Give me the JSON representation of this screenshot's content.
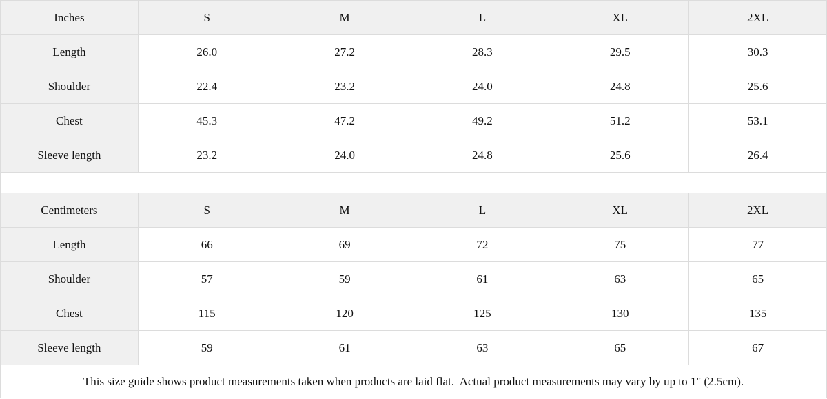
{
  "chart_data": [
    {
      "type": "table",
      "title": "Inches",
      "columns": [
        "Inches",
        "S",
        "M",
        "L",
        "XL",
        "2XL"
      ],
      "rows": [
        [
          "Length",
          "26.0",
          "27.2",
          "28.3",
          "29.5",
          "30.3"
        ],
        [
          "Shoulder",
          "22.4",
          "23.2",
          "24.0",
          "24.8",
          "25.6"
        ],
        [
          "Chest",
          "45.3",
          "47.2",
          "49.2",
          "51.2",
          "53.1"
        ],
        [
          "Sleeve length",
          "23.2",
          "24.0",
          "24.8",
          "25.6",
          "26.4"
        ]
      ]
    },
    {
      "type": "table",
      "title": "Centimeters",
      "columns": [
        "Centimeters",
        "S",
        "M",
        "L",
        "XL",
        "2XL"
      ],
      "rows": [
        [
          "Length",
          "66",
          "69",
          "72",
          "75",
          "77"
        ],
        [
          "Shoulder",
          "57",
          "59",
          "61",
          "63",
          "65"
        ],
        [
          "Chest",
          "115",
          "120",
          "125",
          "130",
          "135"
        ],
        [
          "Sleeve length",
          "59",
          "61",
          "63",
          "65",
          "67"
        ]
      ]
    }
  ],
  "footer": {
    "note": "This size guide shows product measurements taken when products are laid flat.  Actual product measurements may vary by up to 1\" (2.5cm)."
  },
  "colors": {
    "header_bg": "#f0f0f0",
    "row_label_bg": "#f0f0f0",
    "cell_bg": "#ffffff",
    "border": "#dcdcdc",
    "text": "#111111"
  }
}
